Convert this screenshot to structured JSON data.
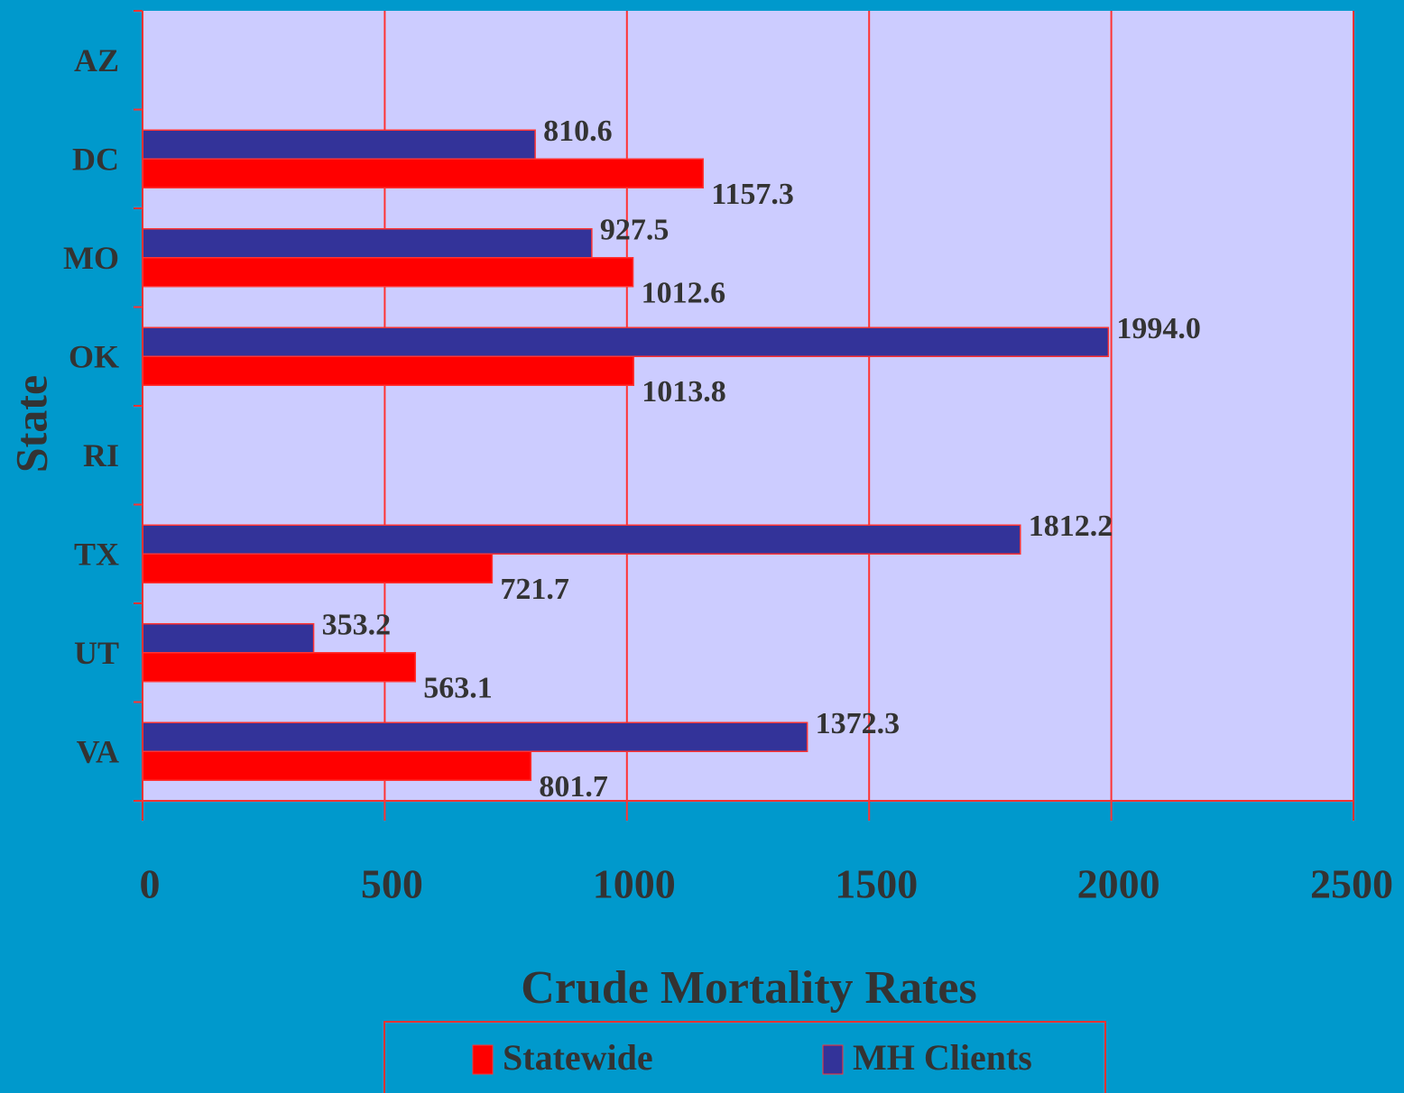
{
  "chart_data": {
    "type": "barh",
    "x_label": "Crude Mortality Rates",
    "y_label": "State",
    "categories": [
      "AZ",
      "DC",
      "MO",
      "OK",
      "RI",
      "TX",
      "UT",
      "VA"
    ],
    "series": [
      {
        "name": "Statewide",
        "color": "#ff0000",
        "values": [
          null,
          1157.3,
          1012.6,
          1013.8,
          null,
          721.7,
          563.1,
          801.7
        ],
        "value_labels": [
          null,
          "1157.3",
          "1012.6",
          "1013.8",
          null,
          "721.7",
          "563.1",
          "801.7"
        ]
      },
      {
        "name": "MH Clients",
        "color": "#333399",
        "values": [
          null,
          810.6,
          927.5,
          1994.0,
          null,
          1812.2,
          353.2,
          1372.3
        ],
        "value_labels": [
          null,
          "810.6",
          "927.5",
          "1994.0",
          null,
          "1812.2",
          "353.2",
          "1372.3"
        ]
      }
    ],
    "xlim": [
      0,
      2500
    ],
    "xticks": [
      0,
      500,
      1000,
      1500,
      2000,
      2500
    ],
    "grid": true,
    "legend": "bottom"
  }
}
